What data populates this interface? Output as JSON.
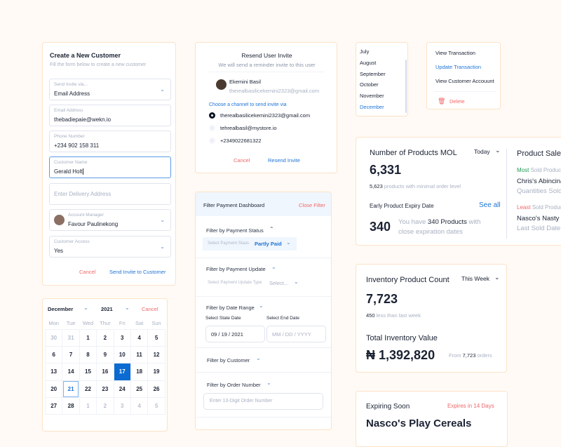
{
  "create_customer": {
    "title": "Create a New Customer",
    "subtitle": "Fill the form below to create a new customer",
    "invite_via": {
      "label": "Send Invite via...",
      "value": "Email Address"
    },
    "email": {
      "label": "Email Address",
      "value": "thebadiepaie@wekn.io"
    },
    "phone": {
      "label": "Phone Number",
      "value": "+234 902 158 311"
    },
    "name": {
      "label": "Customer Name",
      "value": "Gerald Holt"
    },
    "delivery": {
      "placeholder": "Enter Delivery Address"
    },
    "manager": {
      "label": "Account Manager",
      "value": "Favour Paulinekong"
    },
    "access": {
      "label": "Customer Access",
      "value": "Yes"
    },
    "cancel": "Cancel",
    "submit": "Send Invite to Customer"
  },
  "calendar": {
    "month": "December",
    "year": "2021",
    "cancel": "Cancel",
    "weekdays": [
      "Mon",
      "Tue",
      "Wed",
      "Thur",
      "Fri",
      "Sat",
      "Sun"
    ],
    "weeks": [
      [
        "30",
        "31",
        "1",
        "2",
        "3",
        "4",
        "5"
      ],
      [
        "6",
        "7",
        "8",
        "9",
        "10",
        "11",
        "12"
      ],
      [
        "13",
        "14",
        "15",
        "16",
        "17",
        "18",
        "19"
      ],
      [
        "20",
        "21",
        "22",
        "23",
        "24",
        "25",
        "26"
      ],
      [
        "27",
        "28",
        "1",
        "2",
        "3",
        "4",
        "5"
      ]
    ],
    "selected": "17",
    "today": "21"
  },
  "resend": {
    "title": "Resend User Invite",
    "subtitle": "We will send a reminder invite to this user",
    "user_name": "Ekemini Basil",
    "user_email": "therealbasilicekemini2323@gmail.com",
    "channel_label": "Choose a channel to send invite via",
    "channels": [
      "therealbasilicekemini2323@gmail.com",
      "tehrealbasil@mystore.io",
      "+2349022681322"
    ],
    "selected_channel": 0,
    "cancel": "Cancel",
    "submit": "Resend Invite"
  },
  "filter": {
    "title": "Filter Payment Dashboard",
    "close": "Close Filter",
    "payment_status": {
      "title": "Filter by Payment Status",
      "label": "Select Payment Staus",
      "value": "Partly Paid"
    },
    "payment_update": {
      "title": "Filter by Payment Update",
      "label": "Select Payment Update Type",
      "value": "Select..."
    },
    "date_range": {
      "title": "Filter by Date Range",
      "start_label": "Select State Date",
      "start_value": "09 / 19 / 2021",
      "end_label": "Select End Date",
      "end_placeholder": "MM / DD / YYYY"
    },
    "customer": {
      "title": "Filter by Customer"
    },
    "order": {
      "title": "Filter by Order Number",
      "placeholder": "Enter 10-Digit Order Number"
    }
  },
  "months": {
    "items": [
      "July",
      "August",
      "September",
      "October",
      "November",
      "December"
    ],
    "selected": "December"
  },
  "menu": {
    "items": [
      "View Transaction",
      "Update Transaction",
      "View Customer Accouunt"
    ],
    "delete": "Delete"
  },
  "mol": {
    "title": "Number of Products MOL",
    "period": "Today",
    "value": "6,331",
    "sub_count": "5,623",
    "sub_text": "products with minimal order level",
    "expiry_title": "Early Product Expiry Date",
    "see_all": "See all",
    "expiry_count": "340",
    "expiry_pre": "You have",
    "expiry_bold": "340 Products",
    "expiry_post": "with close expiration dates"
  },
  "sales": {
    "title": "Product Sales",
    "most": "Most",
    "most_rest": "Sold Product",
    "most_name": "Chris's Abincina",
    "most_sub": "Quantities Sold",
    "least": "Least",
    "least_rest": "Sold Product",
    "least_name": "Nasco's Nasty",
    "least_sub": "Last Sold Date"
  },
  "inventory": {
    "title": "Inventory Product Count",
    "period": "This Week",
    "value": "7,723",
    "delta": "450",
    "delta_text": "less than last week",
    "total_title": "Total Inventory Value",
    "total_value": "₦ 1,392,820",
    "from": "From",
    "orders_count": "7,723",
    "orders": "orders"
  },
  "expiring": {
    "title": "Expiring Soon",
    "badge": "Expires in 14 Days",
    "product": "Nasco's Play Cereals"
  }
}
